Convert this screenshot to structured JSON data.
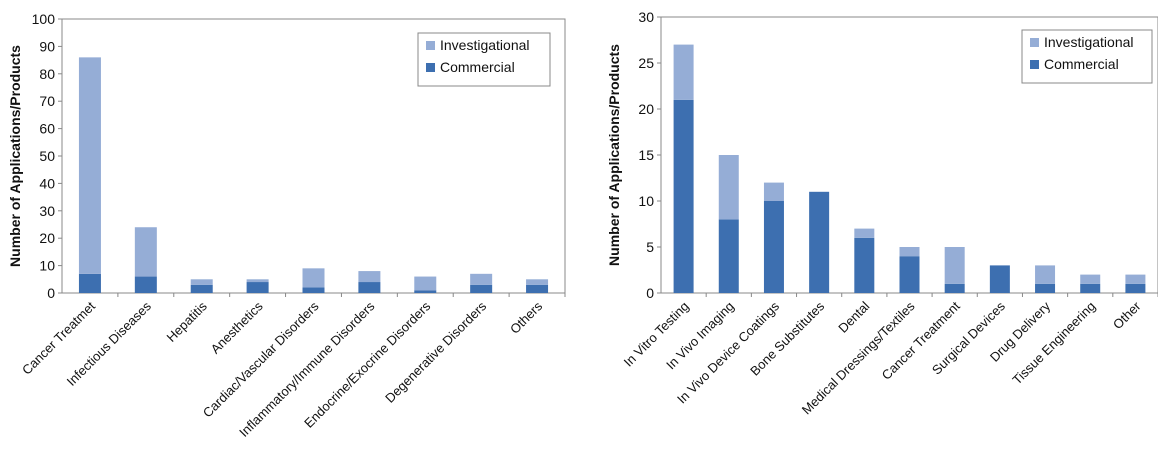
{
  "colors": {
    "commercial": "#3d6fb0",
    "investigational": "#95add6",
    "axis": "#888888"
  },
  "chart_data": [
    {
      "type": "bar",
      "stacked": true,
      "title": "",
      "xlabel": "",
      "ylabel": "Number of Applications/Products",
      "ylim": [
        0,
        100
      ],
      "yticks": [
        0,
        10,
        20,
        30,
        40,
        50,
        60,
        70,
        80,
        90,
        100
      ],
      "legend_position": "top-right",
      "grid": false,
      "categories": [
        "Cancer Treatmet",
        "Infectious Diseases",
        "Hepatitis",
        "Anesthetics",
        "Cardiac/Vascular Disorders",
        "Inflammatory/Immune Disorders",
        "Endocrine/Exocrine Disorders",
        "Degenerative Disorders",
        "Others"
      ],
      "series": [
        {
          "name": "Commercial",
          "color_key": "commercial",
          "values": [
            7,
            6,
            3,
            4,
            2,
            4,
            1,
            3,
            3
          ]
        },
        {
          "name": "Investigational",
          "color_key": "investigational",
          "values": [
            79,
            18,
            2,
            1,
            7,
            4,
            5,
            4,
            2
          ]
        }
      ],
      "legend_order": [
        "Investigational",
        "Commercial"
      ]
    },
    {
      "type": "bar",
      "stacked": true,
      "title": "",
      "xlabel": "",
      "ylabel": "Number of Applications/Products",
      "ylim": [
        0,
        30
      ],
      "yticks": [
        0,
        5,
        10,
        15,
        20,
        25,
        30
      ],
      "legend_position": "top-right",
      "grid": false,
      "categories": [
        "In Vitro Testing",
        "In Vivo Imaging",
        "In Vivo Device Coatings",
        "Bone Substitutes",
        "Dental",
        "Medical Dressings/Textiles",
        "Cancer Treatment",
        "Surgical Devices",
        "Drug Delivery",
        "Tissue Engineering",
        "Other"
      ],
      "series": [
        {
          "name": "Commercial",
          "color_key": "commercial",
          "values": [
            21,
            8,
            10,
            11,
            6,
            4,
            1,
            3,
            1,
            1,
            1
          ]
        },
        {
          "name": "Investigational",
          "color_key": "investigational",
          "values": [
            6,
            7,
            2,
            0,
            1,
            1,
            4,
            0,
            2,
            1,
            1
          ]
        }
      ],
      "legend_order": [
        "Investigational",
        "Commercial"
      ]
    }
  ]
}
